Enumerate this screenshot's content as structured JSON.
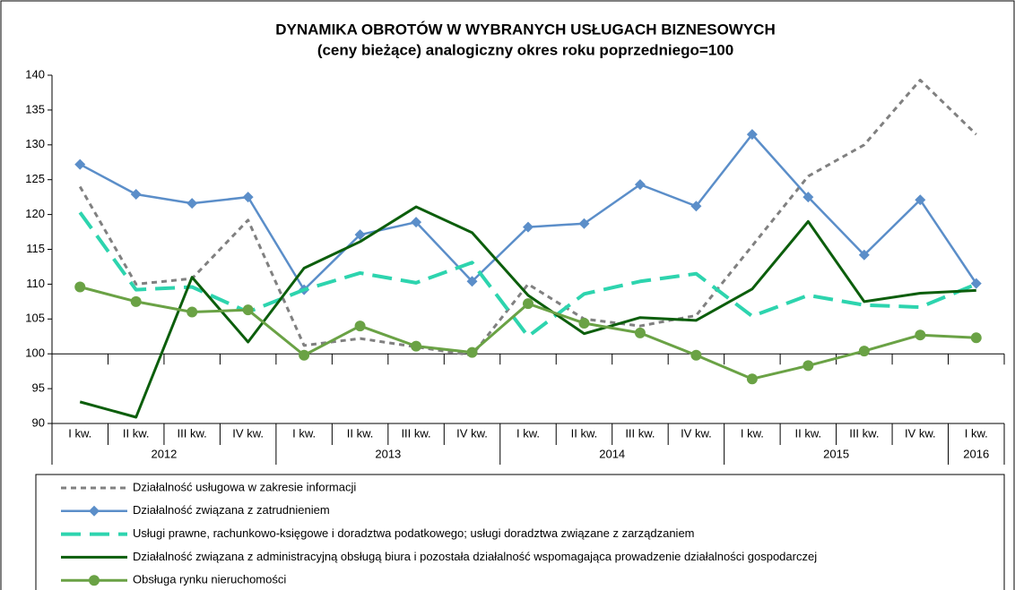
{
  "chart_data": {
    "type": "line",
    "title": "DYNAMIKA OBROTÓW W WYBRANYCH USŁUGACH BIZNESOWYCH",
    "subtitle": "(ceny bieżące) analogiczny okres roku poprzedniego=100",
    "categories": [
      "I kw.",
      "II kw.",
      "III kw.",
      "IV kw.",
      "I kw.",
      "II kw.",
      "III kw.",
      "IV kw.",
      "I kw.",
      "II kw.",
      "III kw.",
      "IV kw.",
      "I kw.",
      "II kw.",
      "III kw.",
      "IV kw.",
      "I kw."
    ],
    "year_groups": [
      {
        "label": "2012",
        "count": 4
      },
      {
        "label": "2013",
        "count": 4
      },
      {
        "label": "2014",
        "count": 4
      },
      {
        "label": "2015",
        "count": 4
      },
      {
        "label": "2016",
        "count": 1
      }
    ],
    "ylim": [
      90,
      140
    ],
    "yticks": [
      90,
      95,
      100,
      105,
      110,
      115,
      120,
      125,
      130,
      135,
      140
    ],
    "x_axis_crosses": 100,
    "series": [
      {
        "name": "Działalność usługowa w zakresie informacji",
        "color": "#808080",
        "dash": "6,5",
        "width": 3,
        "marker": "none",
        "values": [
          124,
          110,
          110.8,
          119.2,
          101.2,
          102.2,
          101,
          99.8,
          110,
          105,
          104,
          105.5,
          115.5,
          125.5,
          130,
          139.3,
          131.5
        ]
      },
      {
        "name": "Działalność związana z zatrudnieniem",
        "color": "#5b8ec9",
        "dash": "none",
        "width": 2.5,
        "marker": "diamond",
        "values": [
          127.2,
          122.9,
          121.6,
          122.5,
          109.2,
          117.1,
          118.9,
          110.4,
          118.2,
          118.7,
          124.3,
          121.2,
          131.5,
          122.5,
          114.2,
          122.1,
          110.1
        ]
      },
      {
        "name": "Usługi prawne, rachunkowo-księgowe i doradztwa podatkowego; usługi doradztwa związane z zarządzaniem",
        "color": "#2dd4ae",
        "dash": "22,10",
        "width": 4,
        "marker": "none",
        "values": [
          120.3,
          109.2,
          109.6,
          106,
          109.2,
          111.6,
          110.2,
          113.1,
          102.5,
          108.6,
          110.4,
          111.5,
          105.4,
          108.4,
          107,
          106.7,
          110
        ]
      },
      {
        "name": "Działalność związana z administracyjną obsługą biura i pozostała działalność wspomagająca prowadzenie działalności gospodarczej",
        "color": "#0c5e0c",
        "dash": "none",
        "width": 3,
        "marker": "none",
        "values": [
          93.1,
          90.9,
          111,
          101.7,
          112.3,
          116.1,
          121.1,
          117.4,
          108.4,
          102.9,
          105.2,
          104.8,
          109.3,
          119,
          107.5,
          108.7,
          109.1
        ]
      },
      {
        "name": "Obsługa rynku nieruchomości",
        "color": "#6aa245",
        "dash": "none",
        "width": 3,
        "marker": "circle",
        "values": [
          109.6,
          107.5,
          106,
          106.3,
          99.8,
          104,
          101.1,
          100.2,
          107.2,
          104.4,
          103,
          99.8,
          96.4,
          98.3,
          100.4,
          102.7,
          102.3
        ]
      }
    ]
  }
}
